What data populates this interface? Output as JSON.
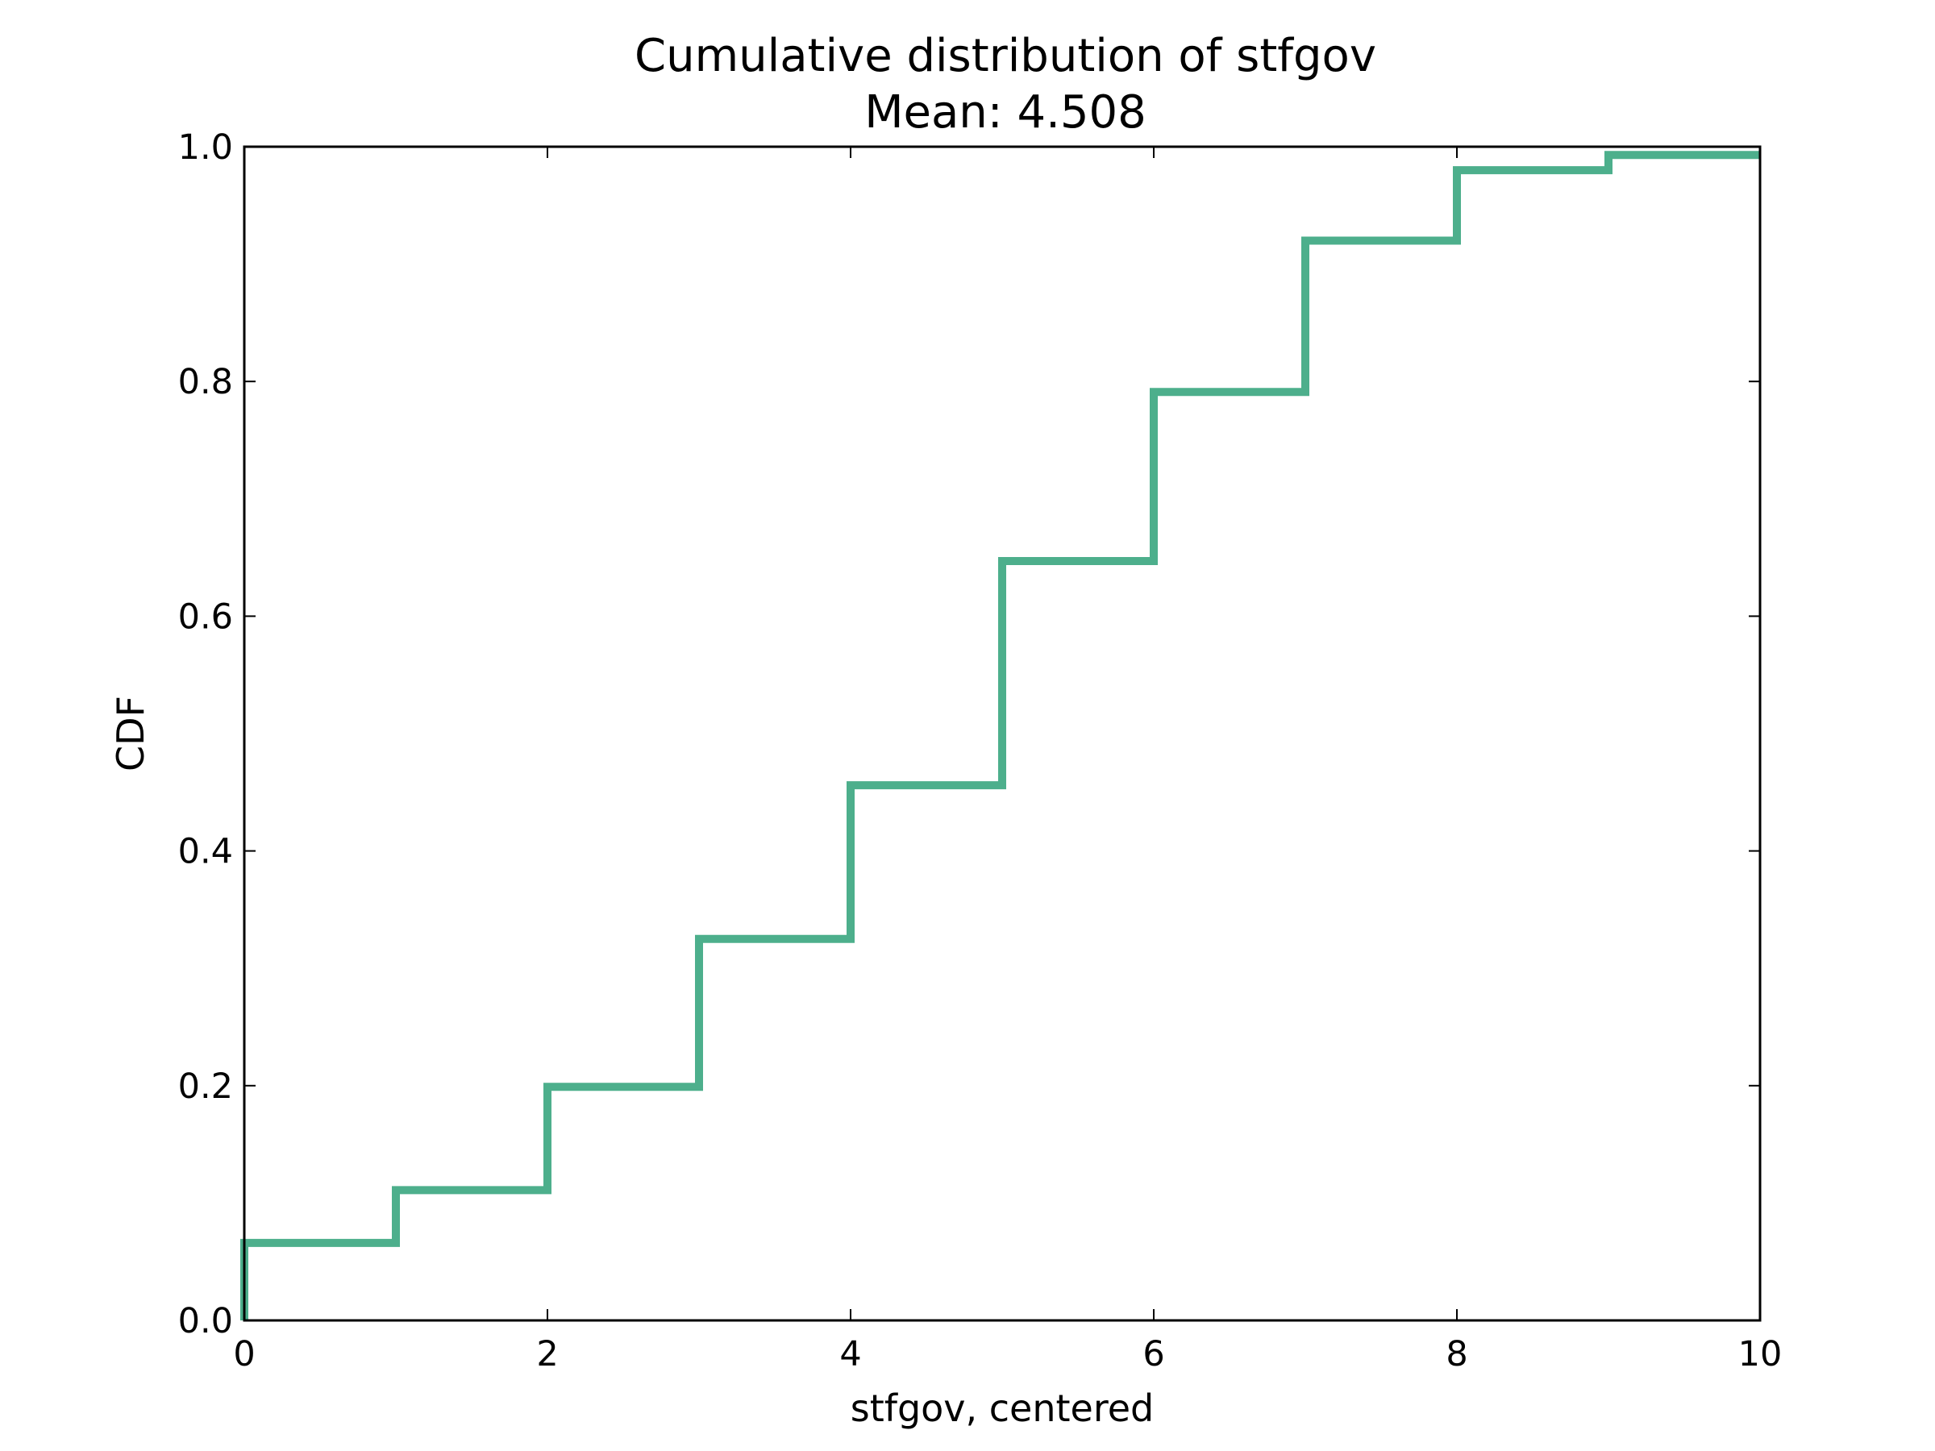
{
  "chart_data": {
    "type": "line",
    "step": "post",
    "title": "Cumulative distribution of stfgov",
    "subtitle": "Mean: 4.508",
    "xlabel": "stfgov, centered",
    "ylabel": "CDF",
    "xlim": [
      0,
      10
    ],
    "ylim": [
      0,
      1
    ],
    "x_ticks": [
      "0",
      "2",
      "4",
      "6",
      "8",
      "10"
    ],
    "y_ticks": [
      "0.0",
      "0.2",
      "0.4",
      "0.6",
      "0.8",
      "1.0"
    ],
    "grid": false,
    "legend": null,
    "color": "#4daf8c",
    "series": [
      {
        "x": [
          0,
          1,
          2,
          3,
          4,
          5,
          6,
          7,
          8,
          9,
          10
        ],
        "y": [
          0.066,
          0.111,
          0.199,
          0.325,
          0.456,
          0.647,
          0.791,
          0.92,
          0.98,
          0.993,
          0.993
        ]
      }
    ]
  }
}
